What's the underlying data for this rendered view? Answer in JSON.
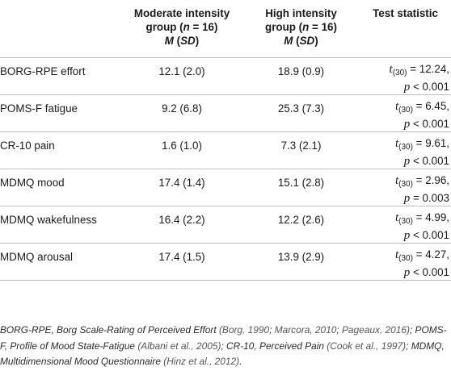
{
  "header": {
    "col_measure": "",
    "moderate": {
      "line1": "Moderate intensity",
      "line2_pre": "group (",
      "line2_n": "n",
      "line2_post": " = 16)",
      "line3_m": "M",
      "line3_sd": "SD"
    },
    "high": {
      "line1": "High intensity",
      "line2_pre": "group (",
      "line2_n": "n",
      "line2_post": " = 16)",
      "line3_m": "M",
      "line3_sd": "SD"
    },
    "stat": "Test statistic"
  },
  "rows": [
    {
      "measure": "BORG-RPE effort",
      "moderate": "12.1 (2.0)",
      "high": "18.9 (0.9)",
      "t_sub": "(30)",
      "t_val": " = 12.24,",
      "p_rel": " < 0.001"
    },
    {
      "measure": "POMS-F fatigue",
      "moderate": "9.2 (6.8)",
      "high": "25.3 (7.3)",
      "t_sub": "(30)",
      "t_val": " = 6.45,",
      "p_rel": " < 0.001"
    },
    {
      "measure": "CR-10 pain",
      "moderate": "1.6 (1.0)",
      "high": "7.3 (2.1)",
      "t_sub": "(30)",
      "t_val": " = 9.61,",
      "p_rel": " < 0.001"
    },
    {
      "measure": "MDMQ mood",
      "moderate": "17.4 (1.4)",
      "high": "15.1 (2.8)",
      "t_sub": "(30)",
      "t_val": " = 2.96,",
      "p_rel": " = 0.003"
    },
    {
      "measure": "MDMQ wakefulness",
      "moderate": "16.4 (2.2)",
      "high": "12.2 (2.6)",
      "t_sub": "(30)",
      "t_val": " = 4.99,",
      "p_rel": " < 0.001"
    },
    {
      "measure": "MDMQ arousal",
      "moderate": "17.4 (1.5)",
      "high": "13.9 (2.9)",
      "t_sub": "(30)",
      "t_val": " = 4.27,",
      "p_rel": " < 0.001"
    }
  ],
  "footnote": {
    "s1": "BORG-RPE, Borg Scale-Rating of Perceived Effort ",
    "c1": "(Borg, 1990",
    "s2": "; ",
    "c2": "Marcora, 2010",
    "s3": "; ",
    "c3": "Pageaux, 2016)",
    "s4": "; POMS-F, Profile of Mood State-Fatigue ",
    "c4": "(Albani et al., 2005)",
    "s5": "; CR-10, Perceived Pain ",
    "c5": "(Cook et al., 1997)",
    "s6": "; MDMQ, Multidimensional Mood Questionnaire ",
    "c6": "(Hinz et al., 2012)",
    "s7": "."
  },
  "symbols": {
    "t": "t",
    "p": "p"
  }
}
